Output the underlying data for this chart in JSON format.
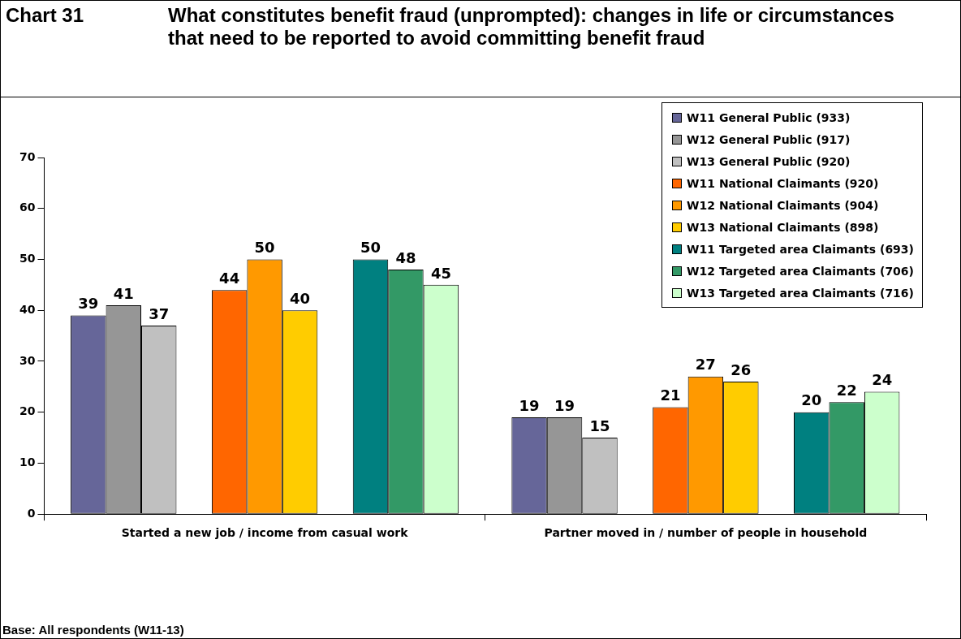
{
  "chart_data": {
    "type": "bar",
    "title": "What constitutes benefit fraud (unprompted): changes in life or circumstances that need to be reported to avoid committing benefit fraud",
    "annotations": [
      "Chart 31",
      "Base: All respondents (W11-13)"
    ],
    "categories": [
      "Started a new job / income from casual work",
      "Partner moved in / number of people in household"
    ],
    "series": [
      {
        "name": "W11 General Public (933)",
        "color": "#666699",
        "values": [
          39,
          19
        ]
      },
      {
        "name": "W12 General Public (917)",
        "color": "#969696",
        "values": [
          41,
          19
        ]
      },
      {
        "name": "W13 General Public (920)",
        "color": "#c0c0c0",
        "values": [
          37,
          15
        ]
      },
      {
        "name": "W11 National Claimants (920)",
        "color": "#ff6600",
        "values": [
          44,
          21
        ]
      },
      {
        "name": "W12 National Claimants (904)",
        "color": "#ff9900",
        "values": [
          50,
          27
        ]
      },
      {
        "name": "W13 National Claimants (898)",
        "color": "#ffcc00",
        "values": [
          40,
          26
        ]
      },
      {
        "name": "W11 Targeted area Claimants (693)",
        "color": "#008080",
        "values": [
          50,
          20
        ]
      },
      {
        "name": "W12 Targeted area Claimants (706)",
        "color": "#339966",
        "values": [
          48,
          22
        ]
      },
      {
        "name": "W13 Targeted area Claimants (716)",
        "color": "#ccffcc",
        "values": [
          45,
          24
        ]
      }
    ],
    "ylim": [
      0,
      70
    ],
    "yticks": [
      0,
      10,
      20,
      30,
      40,
      50,
      60,
      70
    ],
    "grid": false,
    "legend": "top right",
    "data_labels": true
  }
}
